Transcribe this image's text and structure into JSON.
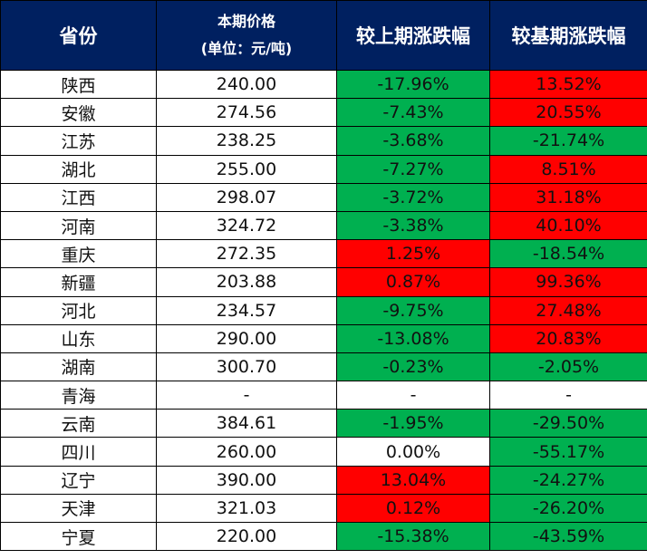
{
  "header": {
    "province": "省份",
    "price_line1": "本期价格",
    "price_line2": "(单位：元/吨)",
    "vs_prev": "较上期涨跌幅",
    "vs_base": "较基期涨跌幅"
  },
  "colors": {
    "up": "#FF0000",
    "down": "#00B050",
    "header": "#002060"
  },
  "rows": [
    {
      "province": "陕西",
      "price": "240.00",
      "vs_prev": "-17.96%",
      "vs_prev_status": "down",
      "vs_base": "13.52%",
      "vs_base_status": "up"
    },
    {
      "province": "安徽",
      "price": "274.56",
      "vs_prev": "-7.43%",
      "vs_prev_status": "down",
      "vs_base": "20.55%",
      "vs_base_status": "up"
    },
    {
      "province": "江苏",
      "price": "238.25",
      "vs_prev": "-3.68%",
      "vs_prev_status": "down",
      "vs_base": "-21.74%",
      "vs_base_status": "down"
    },
    {
      "province": "湖北",
      "price": "255.00",
      "vs_prev": "-7.27%",
      "vs_prev_status": "down",
      "vs_base": "8.51%",
      "vs_base_status": "up"
    },
    {
      "province": "江西",
      "price": "298.07",
      "vs_prev": "-3.72%",
      "vs_prev_status": "down",
      "vs_base": "31.18%",
      "vs_base_status": "up"
    },
    {
      "province": "河南",
      "price": "324.72",
      "vs_prev": "-3.38%",
      "vs_prev_status": "down",
      "vs_base": "40.10%",
      "vs_base_status": "up"
    },
    {
      "province": "重庆",
      "price": "272.35",
      "vs_prev": "1.25%",
      "vs_prev_status": "up",
      "vs_base": "-18.54%",
      "vs_base_status": "down"
    },
    {
      "province": "新疆",
      "price": "203.88",
      "vs_prev": "0.87%",
      "vs_prev_status": "up",
      "vs_base": "99.36%",
      "vs_base_status": "up"
    },
    {
      "province": "河北",
      "price": "234.57",
      "vs_prev": "-9.75%",
      "vs_prev_status": "down",
      "vs_base": "27.48%",
      "vs_base_status": "up"
    },
    {
      "province": "山东",
      "price": "290.00",
      "vs_prev": "-13.08%",
      "vs_prev_status": "down",
      "vs_base": "20.83%",
      "vs_base_status": "up"
    },
    {
      "province": "湖南",
      "price": "300.70",
      "vs_prev": "-0.23%",
      "vs_prev_status": "down",
      "vs_base": "-2.05%",
      "vs_base_status": "down"
    },
    {
      "province": "青海",
      "price": "-",
      "vs_prev": "-",
      "vs_prev_status": "none",
      "vs_base": "-",
      "vs_base_status": "none"
    },
    {
      "province": "云南",
      "price": "384.61",
      "vs_prev": "-1.95%",
      "vs_prev_status": "down",
      "vs_base": "-29.50%",
      "vs_base_status": "down"
    },
    {
      "province": "四川",
      "price": "260.00",
      "vs_prev": "0.00%",
      "vs_prev_status": "none",
      "vs_base": "-55.17%",
      "vs_base_status": "down"
    },
    {
      "province": "辽宁",
      "price": "390.00",
      "vs_prev": "13.04%",
      "vs_prev_status": "up",
      "vs_base": "-24.27%",
      "vs_base_status": "down"
    },
    {
      "province": "天津",
      "price": "321.03",
      "vs_prev": "0.12%",
      "vs_prev_status": "up",
      "vs_base": "-26.20%",
      "vs_base_status": "down"
    },
    {
      "province": "宁夏",
      "price": "220.00",
      "vs_prev": "-15.38%",
      "vs_prev_status": "down",
      "vs_base": "-43.59%",
      "vs_base_status": "down"
    }
  ]
}
